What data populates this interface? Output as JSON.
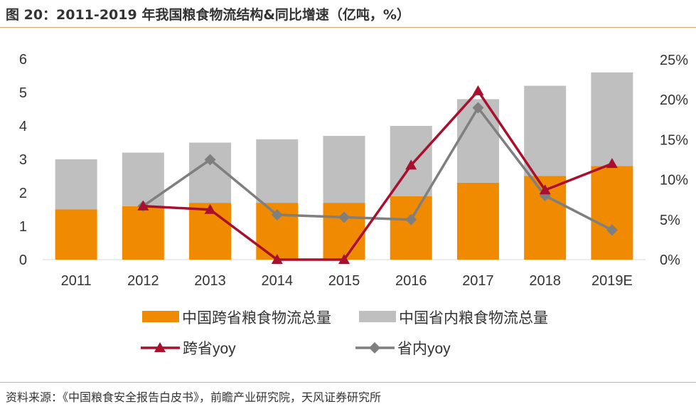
{
  "title": "图 20：2011-2019 年我国粮食物流结构&同比增速（亿吨，%）",
  "source": "资料来源：《中国粮食安全报告白皮书》，前瞻产业研究院，天风证券研究所",
  "chart_data": {
    "type": "bar+line",
    "categories": [
      "2011",
      "2012",
      "2013",
      "2014",
      "2015",
      "2016",
      "2017",
      "2018",
      "2019E"
    ],
    "bar_stacked": true,
    "y_left": {
      "ylim": [
        0,
        6
      ],
      "ticks": [
        "0",
        "1",
        "2",
        "3",
        "4",
        "5",
        "6"
      ]
    },
    "y_right": {
      "ylim": [
        0,
        25
      ],
      "ticks": [
        "0%",
        "5%",
        "10%",
        "15%",
        "20%",
        "25%"
      ]
    },
    "series": [
      {
        "name": "中国跨省粮食物流总量",
        "type": "bar",
        "axis": "left",
        "color": "#f08a00",
        "values": [
          1.5,
          1.6,
          1.7,
          1.7,
          1.7,
          1.9,
          2.3,
          2.5,
          2.8
        ]
      },
      {
        "name": "中国省内粮食物流总量",
        "type": "bar",
        "axis": "left",
        "color": "#bfbfbf",
        "values": [
          1.5,
          1.6,
          1.8,
          1.9,
          2.0,
          2.1,
          2.5,
          2.7,
          2.8
        ]
      },
      {
        "name": "跨省yoy",
        "type": "line",
        "axis": "right",
        "marker": "triangle",
        "color": "#a8102e",
        "values": [
          null,
          6.7,
          6.25,
          0,
          0,
          11.8,
          21.1,
          8.7,
          12.0
        ]
      },
      {
        "name": "省内yoy",
        "type": "line",
        "axis": "right",
        "marker": "diamond",
        "color": "#7f7f7f",
        "values": [
          null,
          6.7,
          12.5,
          5.6,
          5.3,
          5.0,
          19.0,
          8.0,
          3.7
        ]
      }
    ],
    "grid": false,
    "legend": "bottom"
  }
}
